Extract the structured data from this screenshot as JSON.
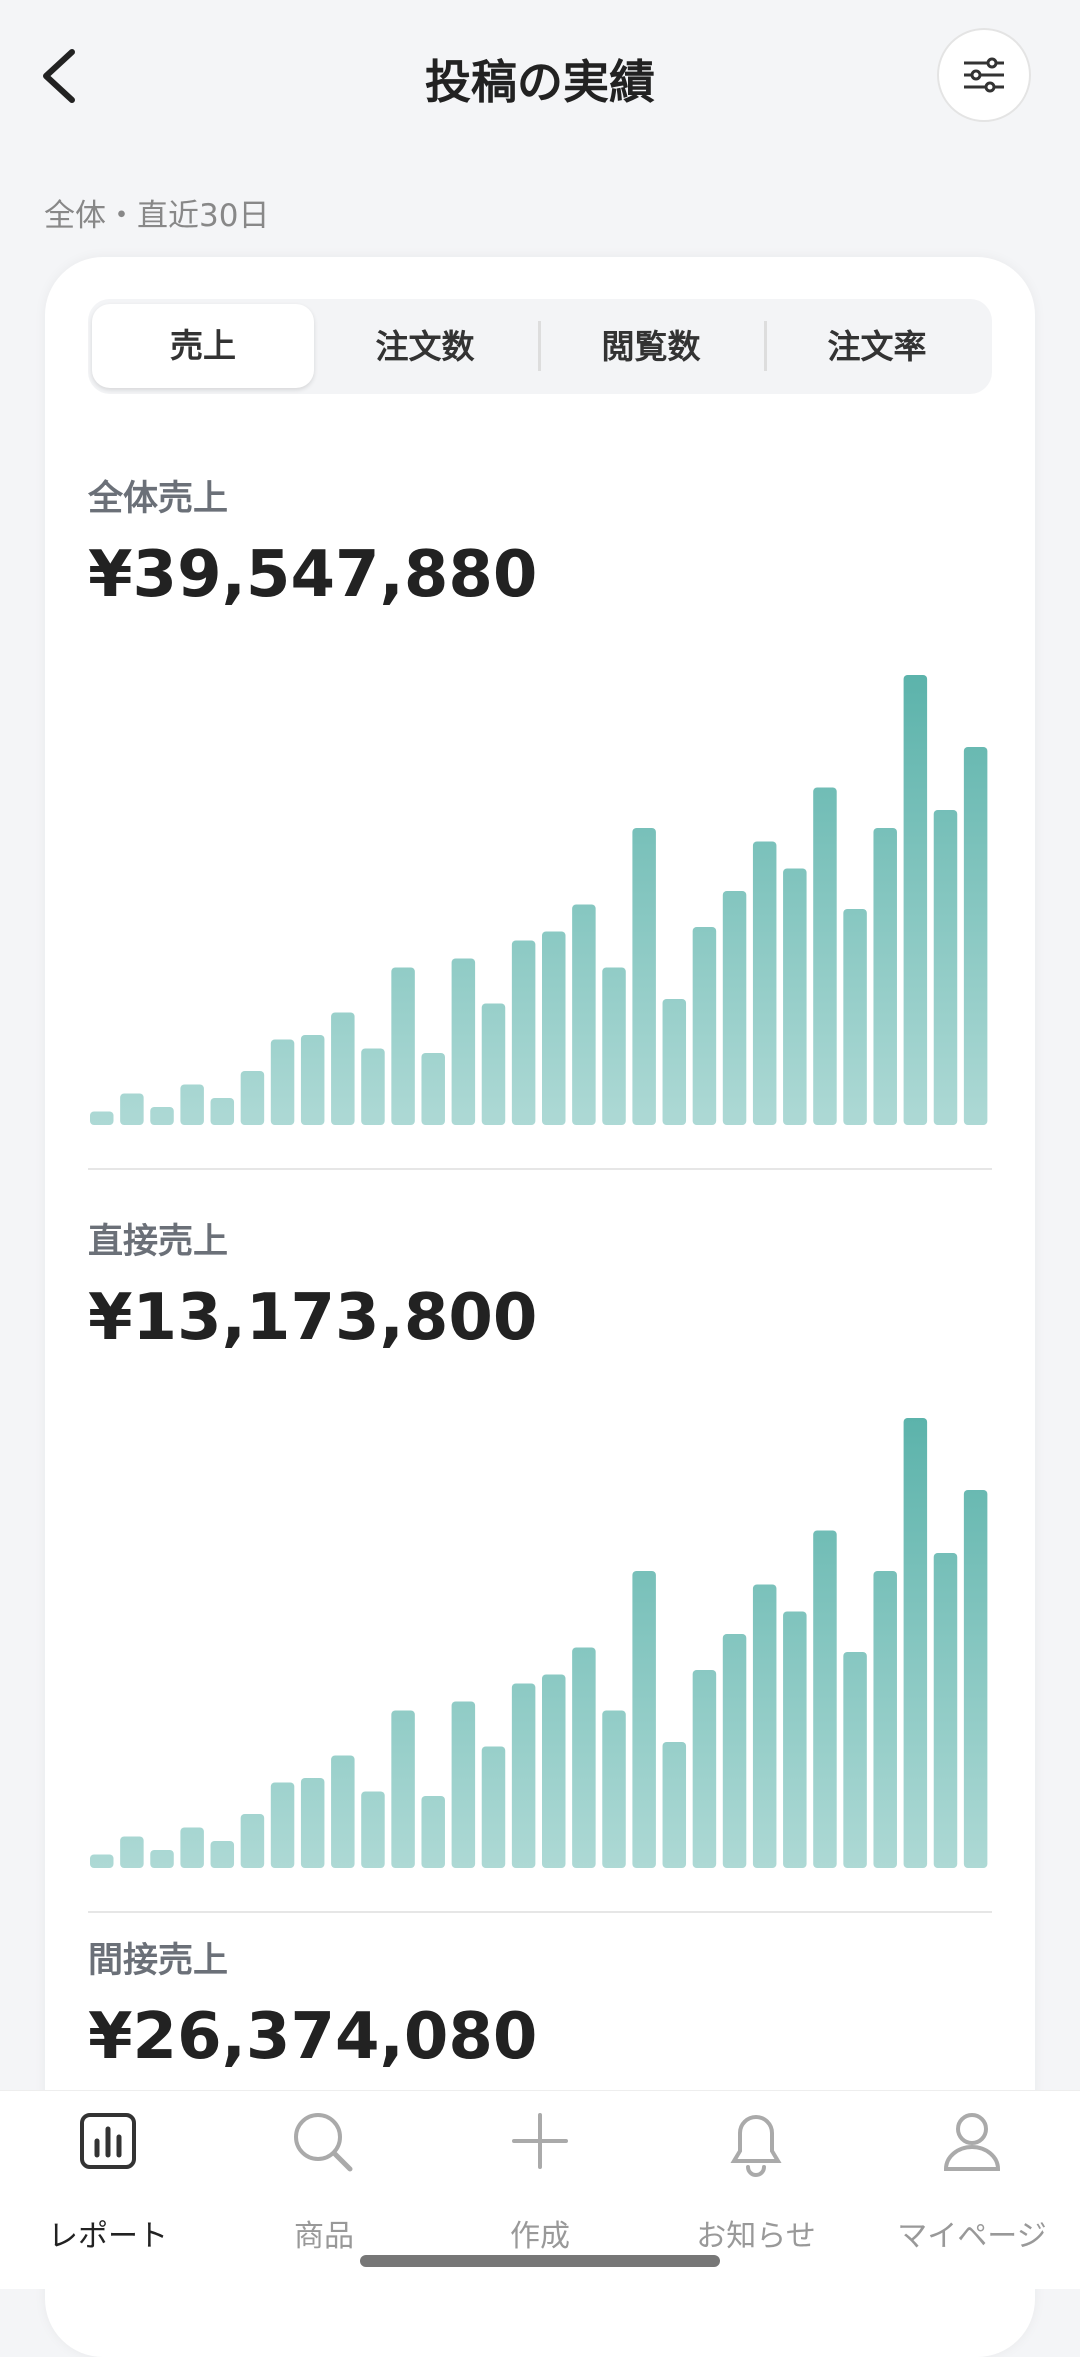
{
  "header": {
    "title": "投稿の実績"
  },
  "filter_label": "全体・直近30日",
  "tabs": {
    "items": [
      "売上",
      "注文数",
      "閲覧数",
      "注文率"
    ],
    "active": 0
  },
  "sections": [
    {
      "label": "全体売上",
      "amount": "¥39,547,880",
      "chart_data": {
        "type": "bar",
        "color": "#5cb3ab",
        "ylim": [
          0,
          100
        ],
        "values": [
          3,
          7,
          4,
          9,
          6,
          12,
          19,
          20,
          25,
          17,
          35,
          16,
          37,
          27,
          41,
          43,
          49,
          35,
          66,
          28,
          44,
          52,
          63,
          57,
          75,
          48,
          66,
          100,
          70,
          84
        ]
      }
    },
    {
      "label": "直接売上",
      "amount": "¥13,173,800",
      "chart_data": {
        "type": "bar",
        "color": "#5cb3ab",
        "ylim": [
          0,
          100
        ],
        "values": [
          3,
          7,
          4,
          9,
          6,
          12,
          19,
          20,
          25,
          17,
          35,
          16,
          37,
          27,
          41,
          43,
          49,
          35,
          66,
          28,
          44,
          52,
          63,
          57,
          75,
          48,
          66,
          100,
          70,
          84
        ]
      }
    },
    {
      "label": "間接売上",
      "amount": "¥26,374,080"
    }
  ],
  "nav": {
    "items": [
      "レポート",
      "商品",
      "作成",
      "お知らせ",
      "マイページ"
    ],
    "active": 0
  }
}
